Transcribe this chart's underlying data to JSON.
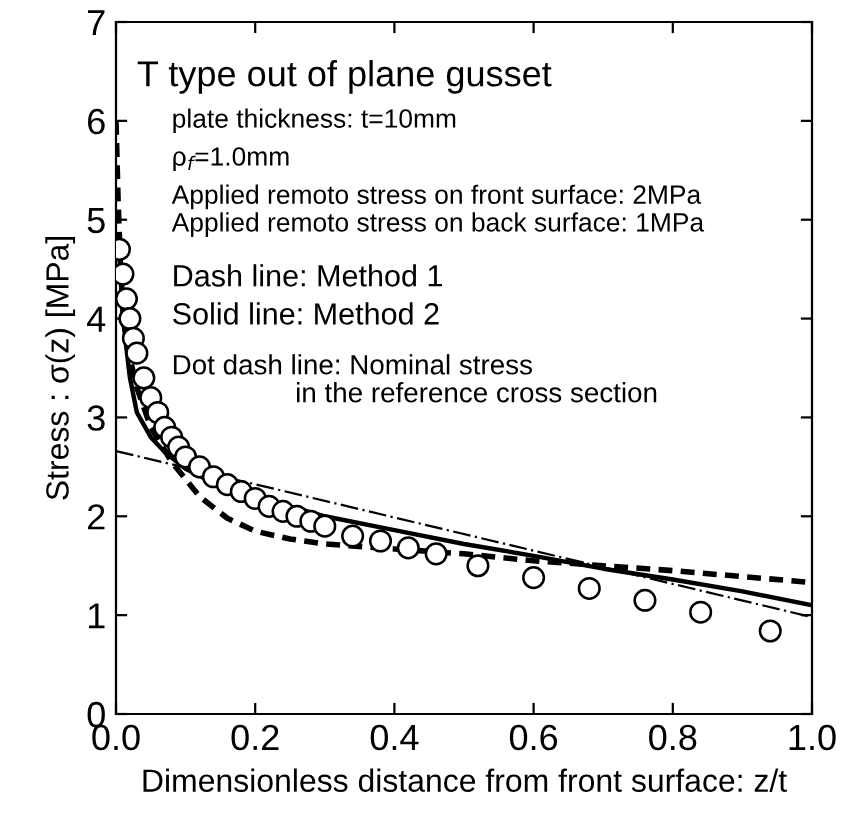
{
  "chart_data": {
    "type": "line",
    "xlabel": "Dimensionless distance from front surface: z/t",
    "ylabel": "Stress : σ(z) [MPa]",
    "xlim": [
      0,
      1
    ],
    "ylim": [
      0,
      7
    ],
    "xticks": [
      {
        "value": 0,
        "label": "0.0"
      },
      {
        "value": 0.2,
        "label": "0.2"
      },
      {
        "value": 0.4,
        "label": "0.4"
      },
      {
        "value": 0.6,
        "label": "0.6"
      },
      {
        "value": 0.8,
        "label": "0.8"
      },
      {
        "value": 1,
        "label": "1.0"
      }
    ],
    "yticks": [
      0,
      1,
      2,
      3,
      4,
      5,
      6,
      7
    ],
    "grid": false,
    "annotations": [
      "T type out of plane gusset",
      "plate thickness: t=10mm",
      "ρ$_{f}$=1.0mm",
      "Applied remoto stress on front surface: 2MPa",
      "Applied remoto stress on back surface: 1MPa",
      "Dash line: Method 1",
      "Solid line: Method 2",
      "Dot dash line: Nominal stress\n                in the reference cross section"
    ],
    "series": [
      {
        "type": "scatter",
        "marker": "circle",
        "color": "#000000",
        "x": [
          0.005,
          0.01,
          0.015,
          0.02,
          0.025,
          0.03,
          0.04,
          0.05,
          0.06,
          0.07,
          0.08,
          0.09,
          0.1,
          0.12,
          0.14,
          0.16,
          0.18,
          0.2,
          0.22,
          0.24,
          0.26,
          0.28,
          0.3,
          0.34,
          0.38,
          0.42,
          0.46,
          0.52,
          0.6,
          0.68,
          0.76,
          0.84,
          0.94
        ],
        "values": [
          4.7,
          4.45,
          4.2,
          4.0,
          3.8,
          3.65,
          3.4,
          3.2,
          3.05,
          2.9,
          2.8,
          2.7,
          2.6,
          2.5,
          2.4,
          2.32,
          2.25,
          2.18,
          2.1,
          2.05,
          2.0,
          1.95,
          1.9,
          1.8,
          1.75,
          1.68,
          1.62,
          1.5,
          1.38,
          1.27,
          1.15,
          1.03,
          0.84
        ]
      },
      {
        "line_style": "dashed",
        "color": "#000000",
        "x": [
          0.0,
          0.003,
          0.006,
          0.01,
          0.02,
          0.03,
          0.05,
          0.08,
          0.12,
          0.16,
          0.2,
          0.25,
          0.3,
          0.4,
          0.5,
          0.6,
          0.7,
          0.8,
          0.9,
          1.0
        ],
        "values": [
          6.0,
          5.2,
          4.6,
          4.1,
          3.6,
          3.3,
          2.9,
          2.55,
          2.2,
          1.98,
          1.85,
          1.77,
          1.72,
          1.67,
          1.62,
          1.55,
          1.5,
          1.45,
          1.39,
          1.33
        ]
      },
      {
        "line_style": "solid",
        "color": "#000000",
        "x": [
          0.005,
          0.01,
          0.02,
          0.03,
          0.05,
          0.07,
          0.1,
          0.15,
          0.2,
          0.3,
          0.4,
          0.5,
          0.6,
          0.7,
          0.8,
          0.9,
          1.0
        ],
        "values": [
          4.7,
          4.0,
          3.4,
          3.05,
          2.8,
          2.65,
          2.48,
          2.3,
          2.2,
          2.0,
          1.86,
          1.72,
          1.6,
          1.47,
          1.36,
          1.24,
          1.1
        ]
      },
      {
        "line_style": "dashdot",
        "color": "#000000",
        "x": [
          0.0,
          1.0
        ],
        "values": [
          2.66,
          0.98
        ]
      }
    ]
  }
}
